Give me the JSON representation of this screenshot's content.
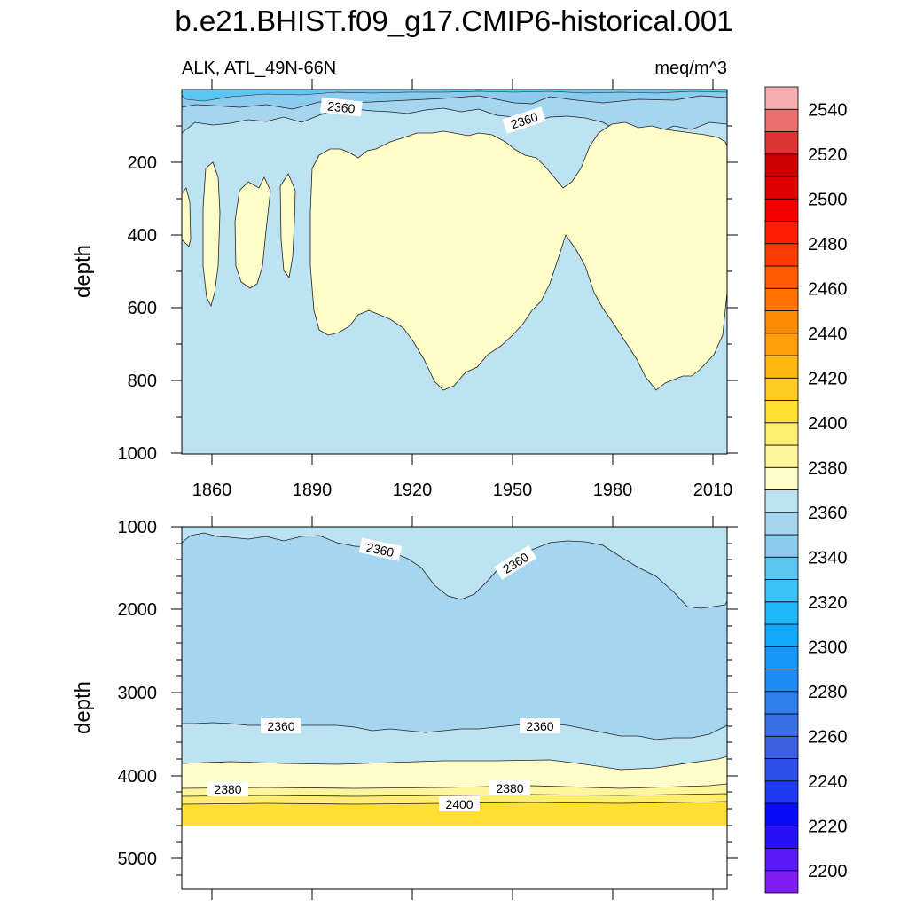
{
  "chart_data": {
    "type": "heatmap",
    "title": "b.e21.BHIST.f09_g17.CMIP6-historical.001",
    "left_subtitle": "ALK, ATL_49N-66N",
    "right_subtitle": "meq/m^3",
    "colorbar": {
      "levels": [
        2200,
        2210,
        2220,
        2230,
        2240,
        2250,
        2260,
        2270,
        2280,
        2290,
        2300,
        2310,
        2320,
        2330,
        2340,
        2350,
        2360,
        2370,
        2380,
        2390,
        2400,
        2410,
        2420,
        2430,
        2440,
        2450,
        2460,
        2470,
        2480,
        2490,
        2500,
        2510,
        2520,
        2530,
        2540,
        2550
      ],
      "labels": [
        "2200",
        "2220",
        "2240",
        "2260",
        "2280",
        "2300",
        "2320",
        "2340",
        "2360",
        "2380",
        "2400",
        "2420",
        "2440",
        "2460",
        "2480",
        "2500",
        "2520",
        "2540"
      ],
      "colors": [
        "#7F1CF1",
        "#5A19F5",
        "#2712F7",
        "#0B0BFB",
        "#1E3BF2",
        "#2B4FE8",
        "#3D60E2",
        "#3A6EE4",
        "#2E7EF0",
        "#1F8CF6",
        "#1598FB",
        "#12A8FC",
        "#20B8F8",
        "#38C4F5",
        "#5BC6F2",
        "#8CCBEE",
        "#A6D5F0",
        "#BDE2F1",
        "#FFFDC8",
        "#FFF59A",
        "#FFEE70",
        "#FFDF32",
        "#FFCA22",
        "#FFB812",
        "#FFA00A",
        "#FF8C00",
        "#FF7200",
        "#FF5A00",
        "#FF3C00",
        "#FF1E00",
        "#F20000",
        "#E00000",
        "#CC0000",
        "#DD3333",
        "#EA7070",
        "#F7AFAF"
      ]
    },
    "top_panel": {
      "x_range": [
        1850,
        2015
      ],
      "x_ticks": [
        "1860",
        "1890",
        "1920",
        "1950",
        "1980",
        "2010"
      ],
      "y_label": "depth",
      "y_range": [
        0,
        1000
      ],
      "y_ticks": [
        "200",
        "400",
        "600",
        "800",
        "1000"
      ],
      "contour_labels": [
        "2360",
        "2360"
      ],
      "fill_regions": [
        {
          "band": "2340-2350",
          "depth_range": [
            0,
            30
          ]
        },
        {
          "band": "2350-2360",
          "depth_range": [
            30,
            120
          ]
        },
        {
          "band": "2360-2370",
          "depth_range": [
            120,
            1000
          ]
        },
        {
          "band": "2370-2380",
          "years": [
            1850,
            2014
          ],
          "depth_range": [
            100,
            850
          ]
        }
      ]
    },
    "bottom_panel": {
      "y_label": "depth",
      "y_range": [
        1000,
        5400
      ],
      "y_ticks": [
        "1000",
        "2000",
        "3000",
        "4000",
        "5000"
      ],
      "contour_labels": [
        "2360",
        "2360",
        "2360",
        "2360",
        "2380",
        "2380",
        "2400"
      ],
      "fill_regions": [
        {
          "band": "2360-2370",
          "depth_range": [
            1000,
            1950
          ]
        },
        {
          "band": "2350-2360",
          "depth_range": [
            1100,
            3450
          ]
        },
        {
          "band": "2360-2370",
          "depth_range": [
            3450,
            3850
          ]
        },
        {
          "band": "2370-2380",
          "depth_range": [
            3850,
            4150
          ]
        },
        {
          "band": "2380-2390",
          "depth_range": [
            4150,
            4250
          ]
        },
        {
          "band": "2390-2400",
          "depth_range": [
            4250,
            4350
          ]
        },
        {
          "band": "2400-2410",
          "depth_range": [
            4350,
            4620
          ]
        }
      ],
      "ocean_bottom_depth": 4620
    }
  }
}
